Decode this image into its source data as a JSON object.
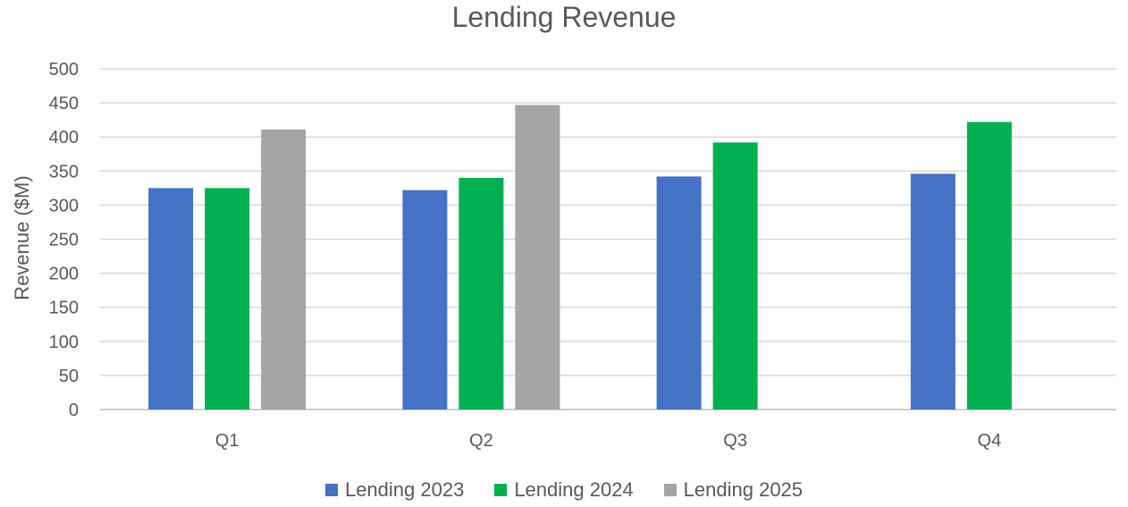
{
  "chart_data": {
    "type": "bar",
    "title": "Lending Revenue",
    "xlabel": "",
    "ylabel": "Revenue ($M)",
    "categories": [
      "Q1",
      "Q2",
      "Q3",
      "Q4"
    ],
    "ylim": [
      0,
      500
    ],
    "yticks": [
      0,
      50,
      100,
      150,
      200,
      250,
      300,
      350,
      400,
      450,
      500
    ],
    "grid": true,
    "legend_position": "bottom",
    "series": [
      {
        "name": "Lending 2023",
        "color": "#4472C4",
        "values": [
          325,
          322,
          342,
          346
        ]
      },
      {
        "name": "Lending 2024",
        "color": "#00B050",
        "values": [
          325,
          340,
          392,
          422
        ]
      },
      {
        "name": "Lending 2025",
        "color": "#A5A5A5",
        "values": [
          411,
          447,
          null,
          null
        ]
      }
    ]
  }
}
